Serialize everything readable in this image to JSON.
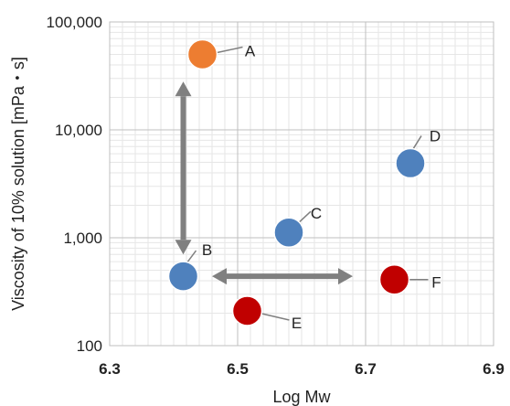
{
  "chart_data": {
    "type": "scatter",
    "title": "",
    "xlabel": "Log Mw",
    "ylabel": "Viscosity of 10% solution [mPa・s]",
    "x_scale": "linear",
    "y_scale": "log",
    "xlim": [
      6.3,
      6.9
    ],
    "ylim": [
      100,
      100000
    ],
    "x_ticks": [
      "6.3",
      "6.5",
      "6.7",
      "6.9"
    ],
    "y_ticks": [
      "100",
      "1,000",
      "10,000",
      "100,000"
    ],
    "grid": true,
    "colors": {
      "blue": "#4f81bd",
      "orange": "#ed7d31",
      "red": "#c00000",
      "arrow": "#808080"
    },
    "points": [
      {
        "label": "A",
        "x": 6.445,
        "y": 50000,
        "color": "orange"
      },
      {
        "label": "B",
        "x": 6.415,
        "y": 440,
        "color": "blue"
      },
      {
        "label": "C",
        "x": 6.58,
        "y": 1120,
        "color": "blue"
      },
      {
        "label": "D",
        "x": 6.77,
        "y": 4900,
        "color": "blue"
      },
      {
        "label": "E",
        "x": 6.515,
        "y": 210,
        "color": "red"
      },
      {
        "label": "F",
        "x": 6.745,
        "y": 410,
        "color": "red"
      }
    ],
    "arrows": [
      {
        "type": "vertical-double",
        "x": 6.415,
        "y_from": 28000,
        "y_to": 700
      },
      {
        "type": "horizontal-double",
        "y": 440,
        "x_from": 6.46,
        "x_to": 6.68
      }
    ]
  }
}
